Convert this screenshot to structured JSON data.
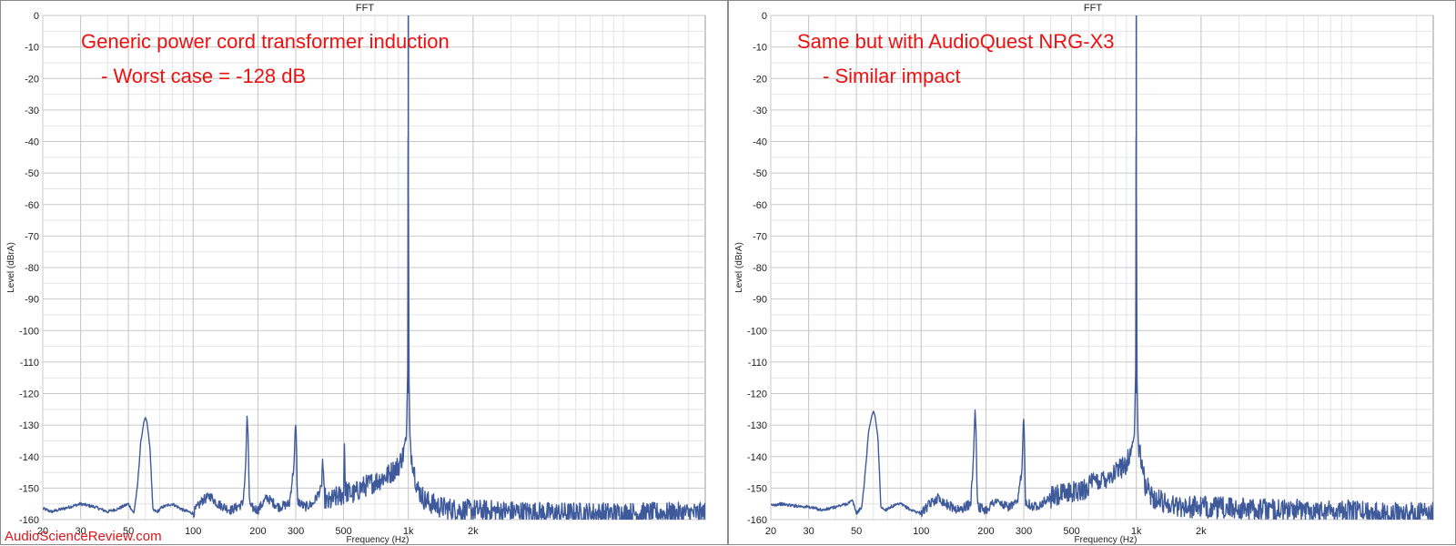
{
  "colors": {
    "trace": "#3f5a9a",
    "annotation": "#ee1111",
    "watermark": "#d9151b"
  },
  "watermark": "AudioScienceReview.com",
  "chart_data": [
    {
      "type": "line",
      "title": "FFT",
      "xlabel": "Frequency (Hz)",
      "ylabel": "Level (dBrA)",
      "x_scale": "log",
      "xlim": [
        20,
        24000
      ],
      "ylim": [
        -160,
        0
      ],
      "grid": true,
      "x_ticks": [
        "20",
        "30",
        "50",
        "100",
        "200",
        "300",
        "500",
        "1k",
        "2k"
      ],
      "y_ticks": [
        "0",
        "-10",
        "-20",
        "-30",
        "-40",
        "-50",
        "-60",
        "-70",
        "-80",
        "-90",
        "-100",
        "-110",
        "-120",
        "-130",
        "-140",
        "-150",
        "-160"
      ],
      "annotations": [
        "Generic power cord transformer induction",
        "- Worst case = -128 dB"
      ],
      "series": [
        {
          "x": [
            20,
            22,
            25,
            30,
            35,
            40,
            45,
            50,
            53,
            55,
            57,
            59,
            60,
            61,
            63,
            65,
            68,
            72,
            80,
            90,
            100,
            110,
            120,
            130,
            150,
            170,
            175,
            178,
            180,
            182,
            185,
            200,
            220,
            250,
            280,
            295,
            298,
            300,
            302,
            305,
            330,
            360,
            395,
            400,
            405,
            420,
            460,
            500,
            505,
            510,
            560,
            600,
            700,
            800,
            900,
            950,
            980,
            995,
            1000,
            1005,
            1020,
            1050,
            1100,
            1200,
            1400,
            1700,
            2000,
            3000,
            5000,
            8000,
            12000,
            16000,
            20000,
            24000
          ],
          "y": [
            -156.5,
            -157.5,
            -156.5,
            -155,
            -156,
            -157.5,
            -156.5,
            -155,
            -158,
            -150,
            -136,
            -129,
            -127.5,
            -129,
            -137,
            -157,
            -157.5,
            -156,
            -155,
            -157,
            -158,
            -154,
            -152.5,
            -155,
            -157,
            -155,
            -145,
            -127,
            -133,
            -152,
            -156,
            -157,
            -153,
            -156,
            -155,
            -142,
            -131,
            -130,
            -135,
            -154,
            -156,
            -155,
            -150,
            -140,
            -152,
            -155,
            -153,
            -152,
            -135,
            -151,
            -152,
            -150,
            -148,
            -146,
            -143,
            -139,
            -134,
            -110,
            0,
            -110,
            -137,
            -142,
            -150,
            -154,
            -156,
            -157,
            -157,
            -157.5,
            -158,
            -158,
            -158,
            -158,
            -158,
            -158
          ]
        }
      ]
    },
    {
      "type": "line",
      "title": "FFT",
      "xlabel": "Frequency (Hz)",
      "ylabel": "Level (dBrA)",
      "x_scale": "log",
      "xlim": [
        20,
        24000
      ],
      "ylim": [
        -160,
        0
      ],
      "grid": true,
      "x_ticks": [
        "20",
        "30",
        "50",
        "100",
        "200",
        "300",
        "500",
        "1k",
        "2k"
      ],
      "y_ticks": [
        "0",
        "-10",
        "-20",
        "-30",
        "-40",
        "-50",
        "-60",
        "-70",
        "-80",
        "-90",
        "-100",
        "-110",
        "-120",
        "-130",
        "-140",
        "-150",
        "-160"
      ],
      "annotations": [
        "Same but with AudioQuest NRG-X3",
        "- Similar impact"
      ],
      "series": [
        {
          "x": [
            20,
            22,
            25,
            30,
            35,
            40,
            45,
            48,
            50,
            53,
            55,
            57,
            59,
            60,
            61,
            63,
            65,
            68,
            72,
            80,
            90,
            100,
            110,
            120,
            130,
            150,
            170,
            175,
            178,
            180,
            182,
            185,
            200,
            220,
            250,
            280,
            295,
            298,
            300,
            302,
            305,
            330,
            360,
            400,
            460,
            500,
            510,
            560,
            600,
            700,
            800,
            900,
            950,
            980,
            995,
            1000,
            1005,
            1020,
            1050,
            1100,
            1200,
            1400,
            1700,
            2000,
            3000,
            5000,
            8000,
            12000,
            16000,
            20000,
            24000
          ],
          "y": [
            -155.5,
            -155,
            -155.5,
            -156,
            -157,
            -156,
            -155,
            -154,
            -158,
            -156,
            -145,
            -132,
            -127,
            -125.5,
            -127,
            -134,
            -156,
            -157,
            -156,
            -155,
            -157,
            -158,
            -155,
            -153,
            -155,
            -157,
            -155,
            -140,
            -125,
            -132,
            -152,
            -156,
            -157,
            -154,
            -156,
            -155,
            -143,
            -130,
            -128,
            -134,
            -154,
            -156,
            -155,
            -153,
            -152,
            -151,
            -151,
            -151,
            -149,
            -147,
            -145,
            -142,
            -138,
            -133,
            -110,
            0,
            -110,
            -136,
            -141,
            -149,
            -153,
            -155,
            -156,
            -156,
            -156.5,
            -157,
            -157,
            -157.5,
            -158,
            -158,
            -158
          ]
        }
      ]
    }
  ]
}
